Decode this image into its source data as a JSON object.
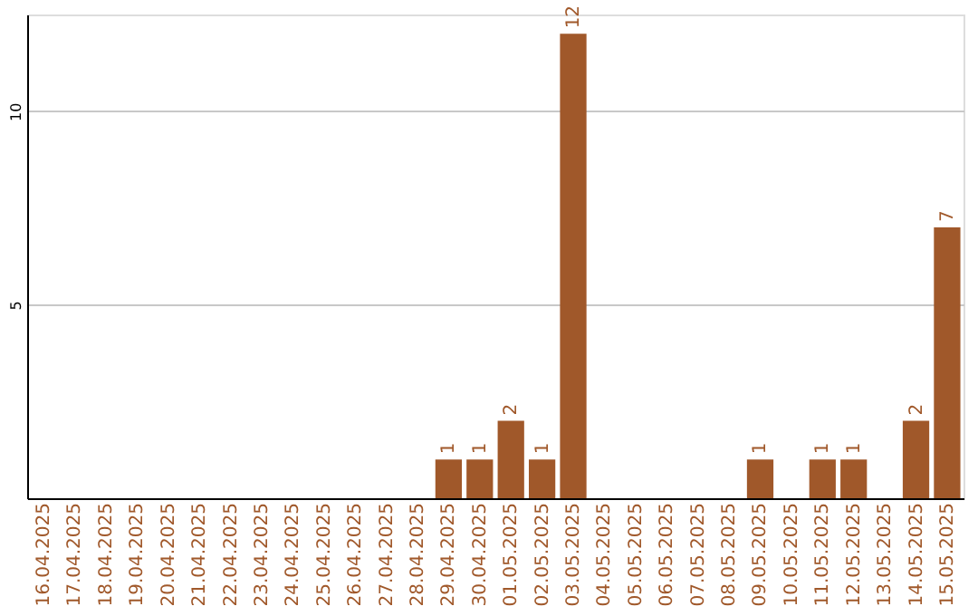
{
  "chart_data": {
    "type": "bar",
    "categories": [
      "16.04.2025",
      "17.04.2025",
      "18.04.2025",
      "19.04.2025",
      "20.04.2025",
      "21.04.2025",
      "22.04.2025",
      "23.04.2025",
      "24.04.2025",
      "25.04.2025",
      "26.04.2025",
      "27.04.2025",
      "28.04.2025",
      "29.04.2025",
      "30.04.2025",
      "01.05.2025",
      "02.05.2025",
      "03.05.2025",
      "04.05.2025",
      "05.05.2025",
      "06.05.2025",
      "07.05.2025",
      "08.05.2025",
      "09.05.2025",
      "10.05.2025",
      "11.05.2025",
      "12.05.2025",
      "13.05.2025",
      "14.05.2025",
      "15.05.2025"
    ],
    "values": [
      0,
      0,
      0,
      0,
      0,
      0,
      0,
      0,
      0,
      0,
      0,
      0,
      0,
      1,
      1,
      2,
      1,
      12,
      0,
      0,
      0,
      0,
      0,
      1,
      0,
      1,
      1,
      0,
      2,
      7
    ],
    "value_labels": [
      null,
      null,
      null,
      null,
      null,
      null,
      null,
      null,
      null,
      null,
      null,
      null,
      null,
      "1",
      "1",
      "2",
      "1",
      "12",
      null,
      null,
      null,
      null,
      null,
      "1",
      null,
      "1",
      "1",
      null,
      "2",
      "7"
    ],
    "color": "#a0582a",
    "ylim": [
      0,
      12.5
    ],
    "yticks": [
      5,
      10
    ],
    "grid": "y"
  }
}
